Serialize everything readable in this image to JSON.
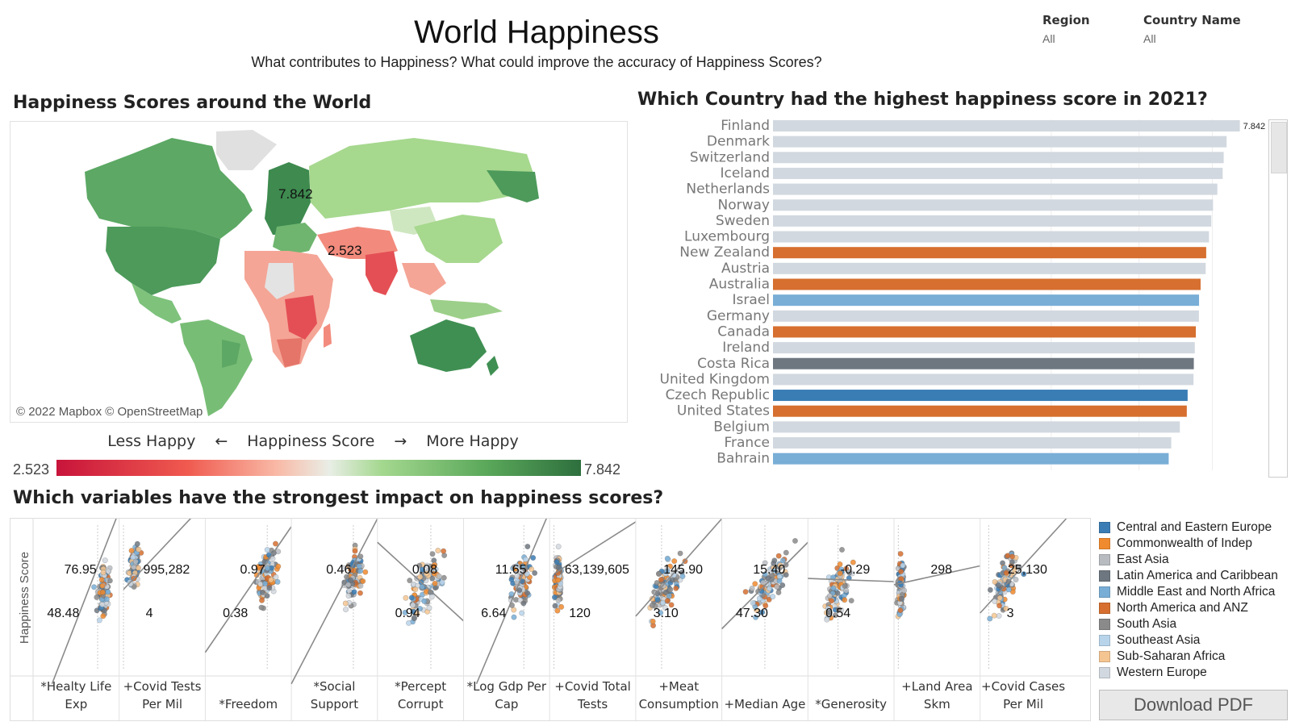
{
  "header": {
    "title": "World Happiness",
    "subtitle": "What contributes to Happiness?  What could improve the accuracy of Happiness Scores?"
  },
  "filters": [
    {
      "label": "Region",
      "value": "All"
    },
    {
      "label": "Country Name",
      "value": "All"
    }
  ],
  "map": {
    "title": "Happiness Scores around the World",
    "credit": "© 2022 Mapbox © OpenStreetMap",
    "max_label": "7.842",
    "min_label": "2.523",
    "legend_left": "Less Happy",
    "legend_left_arrow": "←",
    "legend_center": "Happiness Score",
    "legend_right_arrow": "→",
    "legend_right": "More Happy",
    "scale_min": "2.523",
    "scale_max": "7.842"
  },
  "bar_chart": {
    "title": "Which Country had the highest happiness score in 2021?",
    "top_value_label": "7.842"
  },
  "scatter_section": {
    "title": "Which variables have the strongest impact on happiness scores?",
    "y_axis_label": "Happiness Score"
  },
  "region_colors": {
    "Central and Eastern Europe": "#3a7db5",
    "Commonwealth of Indep": "#f08a2e",
    "East Asia": "#b8bcc1",
    "Latin America and Caribbean": "#6e7780",
    "Middle East and North Africa": "#79aed6",
    "North America and ANZ": "#d66f2f",
    "South Asia": "#8a8a8a",
    "Southeast Asia": "#b8d4ea",
    "Sub-Saharan Africa": "#f5c591",
    "Western Europe": "#d2d8df"
  },
  "legend_items": [
    "Central and Eastern Europe",
    "Commonwealth of Indep",
    "East Asia",
    "Latin America and Caribbean",
    "Middle East and North Africa",
    "North America and ANZ",
    "South Asia",
    "Southeast Asia",
    "Sub-Saharan Africa",
    "Western Europe"
  ],
  "download_label": "Download PDF",
  "chart_data": [
    {
      "type": "bar",
      "title": "Which Country had the highest happiness score in 2021?",
      "categories": [
        "Finland",
        "Denmark",
        "Switzerland",
        "Iceland",
        "Netherlands",
        "Norway",
        "Sweden",
        "Luxembourg",
        "New Zealand",
        "Austria",
        "Australia",
        "Israel",
        "Germany",
        "Canada",
        "Ireland",
        "Costa Rica",
        "United Kingdom",
        "Czech Republic",
        "United States",
        "Belgium",
        "France",
        "Bahrain"
      ],
      "values": [
        7.842,
        7.62,
        7.571,
        7.554,
        7.464,
        7.392,
        7.363,
        7.324,
        7.277,
        7.268,
        7.183,
        7.157,
        7.155,
        7.103,
        7.085,
        7.069,
        7.064,
        6.965,
        6.951,
        6.834,
        6.69,
        6.647
      ],
      "regions": [
        "Western Europe",
        "Western Europe",
        "Western Europe",
        "Western Europe",
        "Western Europe",
        "Western Europe",
        "Western Europe",
        "Western Europe",
        "North America and ANZ",
        "Western Europe",
        "North America and ANZ",
        "Middle East and North Africa",
        "Western Europe",
        "North America and ANZ",
        "Western Europe",
        "Latin America and Caribbean",
        "Western Europe",
        "Central and Eastern Europe",
        "North America and ANZ",
        "Western Europe",
        "Western Europe",
        "Middle East and North Africa"
      ],
      "xlim": [
        0,
        8.2
      ],
      "data_labels": [
        "7.842"
      ]
    },
    {
      "type": "scatter",
      "title": "Which variables have the strongest impact on happiness scores?",
      "ylabel": "Happiness Score",
      "ylim": [
        2.0,
        8.2
      ],
      "panels": [
        {
          "name": "*Healty Life Exp",
          "label_lines": [
            "*Healty Life",
            "Exp"
          ],
          "annotations": [
            "76.95",
            "48.48"
          ],
          "cx": 0.82,
          "cy": 0.55,
          "sx": 0.07,
          "sy": 0.16,
          "x_ref": 0.75,
          "trend": [
            [
              0.22,
              -0.05
            ],
            [
              1.0,
              1.05
            ]
          ]
        },
        {
          "name": "+Covid Tests Per Mil",
          "label_lines": [
            "+Covid Tests",
            "Per Mil"
          ],
          "annotations": [
            "995,282",
            "4"
          ],
          "cx": 0.18,
          "cy": 0.7,
          "sx": 0.06,
          "sy": 0.12,
          "x_ref": 0.05,
          "trend": [
            [
              0.05,
              0.55
            ],
            [
              1.0,
              1.1
            ]
          ]
        },
        {
          "name": "*Freedom",
          "label_lines": [
            "",
            "*Freedom"
          ],
          "annotations": [
            "0.97",
            "0.38"
          ],
          "cx": 0.72,
          "cy": 0.62,
          "sx": 0.12,
          "sy": 0.15,
          "x_ref": 0.72,
          "trend": [
            [
              0.0,
              0.15
            ],
            [
              1.0,
              0.95
            ]
          ]
        },
        {
          "name": "*Social Support",
          "label_lines": [
            "*Social",
            "Support"
          ],
          "annotations": [
            "0.46"
          ],
          "cx": 0.72,
          "cy": 0.62,
          "sx": 0.12,
          "sy": 0.16,
          "x_ref": 0.72,
          "trend": [
            [
              0.0,
              -0.05
            ],
            [
              1.0,
              1.0
            ]
          ]
        },
        {
          "name": "*Percept Corrupt",
          "label_lines": [
            "*Percept",
            "Corrupt"
          ],
          "annotations": [
            "0.08",
            "0.94"
          ],
          "cx": 0.55,
          "cy": 0.58,
          "sx": 0.22,
          "sy": 0.15,
          "x_ref": 0.62,
          "trend": [
            [
              0.0,
              0.85
            ],
            [
              1.0,
              0.35
            ]
          ]
        },
        {
          "name": "*Log Gdp Per Cap",
          "label_lines": [
            "*Log Gdp Per",
            "Cap"
          ],
          "annotations": [
            "11.65",
            "6.64"
          ],
          "cx": 0.68,
          "cy": 0.6,
          "sx": 0.12,
          "sy": 0.16,
          "x_ref": 0.7,
          "trend": [
            [
              0.15,
              -0.05
            ],
            [
              1.0,
              1.05
            ]
          ]
        },
        {
          "name": "+Covid Total Tests",
          "label_lines": [
            "+Covid Total",
            "Tests"
          ],
          "annotations": [
            "63,139,605",
            "120"
          ],
          "cx": 0.1,
          "cy": 0.6,
          "sx": 0.04,
          "sy": 0.15,
          "x_ref": 0.05,
          "trend": [
            [
              0.05,
              0.65
            ],
            [
              1.0,
              0.98
            ]
          ]
        },
        {
          "name": "+Meat Consumption",
          "label_lines": [
            "+Meat",
            "Consumption"
          ],
          "annotations": [
            "145.90",
            "3.10"
          ],
          "cx": 0.35,
          "cy": 0.58,
          "sx": 0.16,
          "sy": 0.14,
          "x_ref": 0.3,
          "trend": [
            [
              0.0,
              0.38
            ],
            [
              1.0,
              1.0
            ]
          ]
        },
        {
          "name": "+Median Age",
          "label_lines": [
            "",
            "+Median Age"
          ],
          "annotations": [
            "15.40",
            "47.30"
          ],
          "cx": 0.55,
          "cy": 0.58,
          "sx": 0.22,
          "sy": 0.14,
          "x_ref": 0.5,
          "trend": [
            [
              0.0,
              0.3
            ],
            [
              1.0,
              0.85
            ]
          ]
        },
        {
          "name": "*Generosity",
          "label_lines": [
            "",
            "*Generosity"
          ],
          "annotations": [
            "-0.29",
            "0.54"
          ],
          "cx": 0.35,
          "cy": 0.55,
          "sx": 0.15,
          "sy": 0.15,
          "x_ref": 0.35,
          "trend": [
            [
              0.0,
              0.62
            ],
            [
              1.0,
              0.6
            ]
          ]
        },
        {
          "name": "+Land Area Skm",
          "label_lines": [
            "+Land Area",
            "Skm"
          ],
          "annotations": [
            "298"
          ],
          "cx": 0.08,
          "cy": 0.55,
          "sx": 0.04,
          "sy": 0.16,
          "x_ref": 0.05,
          "trend": [
            [
              0.0,
              0.58
            ],
            [
              1.0,
              0.7
            ]
          ]
        },
        {
          "name": "+Covid Cases Per Mil",
          "label_lines": [
            "+Covid Cases",
            "Per Mil"
          ],
          "annotations": [
            "25,130",
            "3"
          ],
          "cx": 0.3,
          "cy": 0.6,
          "sx": 0.15,
          "sy": 0.15,
          "x_ref": 0.1,
          "trend": [
            [
              0.0,
              0.4
            ],
            [
              1.0,
              1.0
            ]
          ]
        }
      ]
    }
  ]
}
